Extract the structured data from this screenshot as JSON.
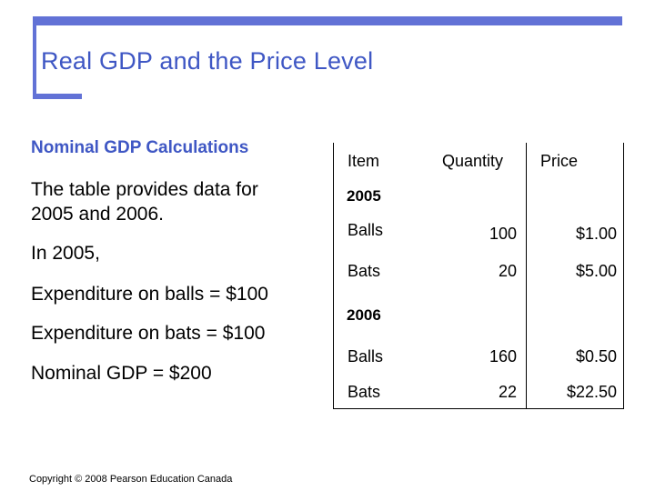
{
  "title": "Real GDP and the Price Level",
  "left": {
    "subheading": "Nominal GDP Calculations",
    "intro": "The table provides data for 2005 and 2006.",
    "in_year": "In 2005,",
    "balls_expenditure": "Expenditure on balls = $100",
    "bats_expenditure": "Expenditure on bats = $100",
    "nominal_gdp": "Nominal GDP = $200"
  },
  "table": {
    "headers": [
      "Item",
      "Quantity",
      "Price"
    ],
    "year1": "2005",
    "rows1": [
      {
        "item": "Balls",
        "quantity": "100",
        "price": "$1.00"
      },
      {
        "item": "Bats",
        "quantity": "20",
        "price": "$5.00"
      }
    ],
    "year2": "2006",
    "rows2": [
      {
        "item": "Balls",
        "quantity": "160",
        "price": "$0.50"
      },
      {
        "item": "Bats",
        "quantity": "22",
        "price": "$22.50"
      }
    ]
  },
  "footer": {
    "copyright": "Copyright © 2008 Pearson Education Canada"
  },
  "colors": {
    "accent": "#6272d6",
    "title": "#3f57c4"
  }
}
